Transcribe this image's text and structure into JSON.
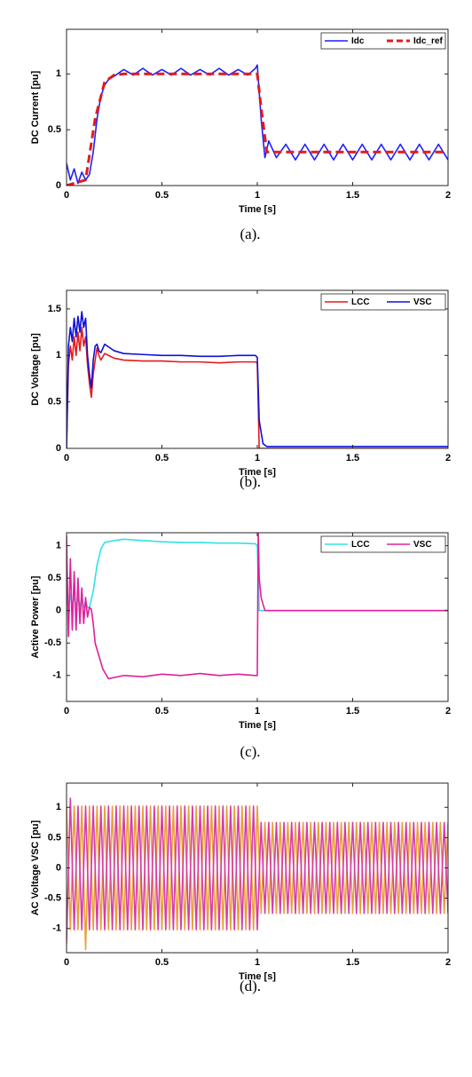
{
  "chart_data": [
    {
      "type": "line",
      "xlabel": "Time [s]",
      "ylabel": "DC Current [pu]",
      "caption": "(a).",
      "xlim": [
        0,
        2
      ],
      "xticks": [
        0,
        0.5,
        1,
        1.5,
        2
      ],
      "ylim": [
        0,
        1.4
      ],
      "yticks": [
        0,
        0.5,
        1
      ],
      "legend": "upper right",
      "series": [
        {
          "name": "Idc",
          "color": "#1f1fff",
          "linestyle": "solid",
          "x": [
            0,
            0.02,
            0.04,
            0.06,
            0.08,
            0.1,
            0.12,
            0.14,
            0.16,
            0.18,
            0.2,
            0.22,
            0.25,
            0.3,
            0.35,
            0.4,
            0.45,
            0.5,
            0.55,
            0.6,
            0.65,
            0.7,
            0.75,
            0.8,
            0.85,
            0.9,
            0.95,
            0.99,
            1.0,
            1.02,
            1.04,
            1.06,
            1.1,
            1.15,
            1.2,
            1.25,
            1.3,
            1.35,
            1.4,
            1.45,
            1.5,
            1.55,
            1.6,
            1.65,
            1.7,
            1.75,
            1.8,
            1.85,
            1.9,
            1.95,
            2.0
          ],
          "values": [
            0.2,
            0.05,
            0.15,
            0.02,
            0.12,
            0.05,
            0.1,
            0.3,
            0.6,
            0.8,
            0.9,
            0.95,
            0.98,
            1.04,
            0.99,
            1.05,
            0.99,
            1.04,
            0.99,
            1.05,
            0.99,
            1.04,
            0.99,
            1.05,
            0.99,
            1.04,
            0.99,
            1.05,
            1.08,
            0.6,
            0.25,
            0.4,
            0.25,
            0.37,
            0.23,
            0.37,
            0.23,
            0.37,
            0.23,
            0.37,
            0.23,
            0.37,
            0.23,
            0.37,
            0.23,
            0.37,
            0.23,
            0.37,
            0.23,
            0.37,
            0.23
          ]
        },
        {
          "name": "Idc_ref",
          "color": "#e31a1c",
          "linestyle": "dashed",
          "x": [
            0,
            0.1,
            0.15,
            0.2,
            0.25,
            0.3,
            1.0,
            1.02,
            1.05,
            2.0
          ],
          "values": [
            0,
            0.05,
            0.6,
            0.93,
            0.99,
            1.0,
            1.0,
            0.7,
            0.3,
            0.3
          ]
        }
      ]
    },
    {
      "type": "line",
      "xlabel": "Time [s]",
      "ylabel": "DC Voltage [pu]",
      "caption": "(b).",
      "xlim": [
        0,
        2
      ],
      "xticks": [
        0,
        0.5,
        1,
        1.5,
        2
      ],
      "ylim": [
        0,
        1.7
      ],
      "yticks": [
        0,
        0.5,
        1,
        1.5
      ],
      "legend": "upper right",
      "series": [
        {
          "name": "LCC",
          "color": "#e31a1c",
          "linestyle": "solid",
          "x": [
            0,
            0.01,
            0.02,
            0.03,
            0.04,
            0.05,
            0.06,
            0.07,
            0.08,
            0.09,
            0.1,
            0.11,
            0.12,
            0.13,
            0.14,
            0.15,
            0.16,
            0.17,
            0.18,
            0.2,
            0.25,
            0.3,
            0.4,
            0.5,
            0.6,
            0.7,
            0.8,
            0.9,
            0.99,
            1.0,
            1.01,
            2.0
          ],
          "values": [
            0,
            0.9,
            1.1,
            0.95,
            1.2,
            1.0,
            1.25,
            1.05,
            1.3,
            1.1,
            1.2,
            0.9,
            0.7,
            0.55,
            0.8,
            0.95,
            1.08,
            1.0,
            0.95,
            1.02,
            0.97,
            0.95,
            0.94,
            0.94,
            0.93,
            0.93,
            0.92,
            0.93,
            0.93,
            0.92,
            0,
            0
          ]
        },
        {
          "name": "VSC",
          "color": "#1010d8",
          "linestyle": "solid",
          "x": [
            0,
            0.01,
            0.02,
            0.03,
            0.04,
            0.05,
            0.06,
            0.07,
            0.08,
            0.09,
            0.1,
            0.11,
            0.12,
            0.13,
            0.14,
            0.15,
            0.16,
            0.17,
            0.18,
            0.2,
            0.25,
            0.3,
            0.4,
            0.5,
            0.6,
            0.7,
            0.8,
            0.9,
            0.99,
            1.0,
            1.005,
            1.01,
            1.03,
            1.05,
            2.0
          ],
          "values": [
            0,
            1.1,
            1.3,
            1.15,
            1.4,
            1.2,
            1.42,
            1.25,
            1.47,
            1.3,
            1.4,
            1.0,
            0.8,
            0.65,
            0.95,
            1.1,
            1.12,
            1.05,
            1.03,
            1.12,
            1.05,
            1.02,
            1.01,
            1.0,
            1.0,
            0.99,
            0.99,
            1.0,
            1.0,
            0.98,
            0.65,
            0.3,
            0.05,
            0.02,
            0.02
          ]
        }
      ]
    },
    {
      "type": "line",
      "xlabel": "Time [s]",
      "ylabel": "Active Power [pu]",
      "caption": "(c).",
      "xlim": [
        0,
        2
      ],
      "xticks": [
        0,
        0.5,
        1,
        1.5,
        2
      ],
      "ylim": [
        -1.4,
        1.2
      ],
      "yticks": [
        -1,
        -0.5,
        0,
        0.5,
        1
      ],
      "legend": "upper right",
      "series": [
        {
          "name": "LCC",
          "color": "#33e0e8",
          "linestyle": "solid",
          "x": [
            0,
            0.01,
            0.02,
            0.03,
            0.04,
            0.05,
            0.06,
            0.07,
            0.08,
            0.09,
            0.1,
            0.11,
            0.12,
            0.14,
            0.16,
            0.18,
            0.2,
            0.25,
            0.3,
            0.4,
            0.5,
            0.6,
            0.7,
            0.8,
            0.9,
            0.99,
            1.0,
            1.01,
            2.0
          ],
          "values": [
            0.25,
            0.05,
            0.25,
            0.05,
            0.25,
            0.05,
            0.2,
            0.05,
            0.2,
            0.05,
            0.15,
            0.05,
            0.05,
            0.3,
            0.7,
            0.95,
            1.05,
            1.08,
            1.1,
            1.08,
            1.06,
            1.05,
            1.05,
            1.04,
            1.04,
            1.03,
            1.0,
            0,
            0
          ]
        },
        {
          "name": "VSC",
          "color": "#e0209a",
          "linestyle": "solid",
          "x": [
            0,
            0.01,
            0.02,
            0.03,
            0.04,
            0.05,
            0.06,
            0.07,
            0.08,
            0.09,
            0.1,
            0.11,
            0.12,
            0.13,
            0.14,
            0.15,
            0.17,
            0.19,
            0.22,
            0.3,
            0.4,
            0.5,
            0.6,
            0.7,
            0.8,
            0.9,
            0.99,
            1.0,
            1.005,
            1.01,
            1.02,
            1.04,
            2.0
          ],
          "values": [
            1.15,
            -0.4,
            0.8,
            -0.3,
            0.6,
            -0.3,
            0.5,
            -0.2,
            0.35,
            -0.2,
            0.2,
            -0.1,
            0.05,
            0.02,
            -0.2,
            -0.5,
            -0.7,
            -0.9,
            -1.05,
            -1.0,
            -1.02,
            -0.98,
            -1.0,
            -0.97,
            -1.0,
            -0.98,
            -1.0,
            -1.0,
            1.2,
            0.5,
            0.2,
            0,
            0
          ]
        }
      ]
    },
    {
      "type": "line",
      "xlabel": "Time [s]",
      "ylabel": "AC Voltage VSC [pu]",
      "caption": "(d).",
      "xlim": [
        0,
        2
      ],
      "xticks": [
        0,
        0.5,
        1,
        1.5,
        2
      ],
      "ylim": [
        -1.4,
        1.4
      ],
      "yticks": [
        -1,
        -0.5,
        0,
        0.5,
        1
      ],
      "series": [
        {
          "color": "#e8a03a",
          "linestyle": "solid",
          "x": [
            0,
            0.02,
            0.04,
            0.06,
            0.08,
            0.1,
            0.12,
            0.14,
            0.16,
            0.18,
            0.2,
            0.22,
            0.24,
            0.26,
            0.28,
            0.3,
            0.32,
            0.34,
            0.36,
            0.38,
            0.4,
            0.42,
            0.44,
            0.46,
            0.48,
            0.5,
            0.52,
            0.54,
            0.56,
            0.58,
            0.6,
            0.62,
            0.64,
            0.66,
            0.68,
            0.7,
            0.72,
            0.74,
            0.76,
            0.78,
            0.8,
            0.82,
            0.84,
            0.86,
            0.88,
            0.9,
            0.92,
            0.94,
            0.96,
            0.98,
            1.0,
            1.02,
            1.04,
            1.06,
            1.08,
            1.1,
            1.12,
            1.14,
            1.16,
            1.18,
            1.2,
            1.22,
            1.24,
            1.26,
            1.28,
            1.3,
            1.32,
            1.34,
            1.36,
            1.38,
            1.4,
            1.42,
            1.44,
            1.46,
            1.48,
            1.5,
            1.52,
            1.54,
            1.56,
            1.58,
            1.6,
            1.62,
            1.64,
            1.66,
            1.68,
            1.7,
            1.72,
            1.74,
            1.76,
            1.78,
            1.8,
            1.82,
            1.84,
            1.86,
            1.88,
            1.9,
            1.92,
            1.94,
            1.96,
            1.98,
            2.0
          ],
          "values": [
            1.02,
            -1.02,
            1.02,
            -1.02,
            1.02,
            -1.35,
            1.02,
            -1.02,
            1.02,
            -1.02,
            1.02,
            -1.02,
            1.02,
            -1.02,
            1.02,
            -1.02,
            1.02,
            -1.02,
            1.02,
            -1.02,
            1.02,
            -1.02,
            1.02,
            -1.02,
            1.02,
            -1.02,
            1.02,
            -1.02,
            1.02,
            -1.02,
            1.02,
            -1.02,
            1.02,
            -1.02,
            1.02,
            -1.02,
            1.02,
            -1.02,
            1.02,
            -1.02,
            1.02,
            -1.02,
            1.02,
            -1.02,
            1.02,
            -1.02,
            1.02,
            -1.02,
            1.02,
            -1.02,
            1.02,
            -0.75,
            0.75,
            -0.75,
            0.75,
            -0.75,
            0.75,
            -0.75,
            0.75,
            -0.75,
            0.75,
            -0.75,
            0.75,
            -0.75,
            0.75,
            -0.75,
            0.75,
            -0.75,
            0.75,
            -0.75,
            0.75,
            -0.75,
            0.75,
            -0.75,
            0.75,
            -0.75,
            0.75,
            -0.75,
            0.75,
            -0.75,
            0.75,
            -0.75,
            0.75,
            -0.75,
            0.75,
            -0.75,
            0.75,
            -0.75,
            0.75,
            -0.75,
            0.75,
            -0.75,
            0.75,
            -0.75,
            0.75,
            -0.75,
            0.75,
            -0.75,
            0.75,
            -0.75,
            0.75
          ]
        },
        {
          "color": "#d63ca8",
          "linestyle": "solid",
          "x": [
            0,
            0.02,
            0.04,
            0.06,
            0.08,
            0.1,
            0.12,
            0.14,
            0.16,
            0.18,
            0.2,
            0.22,
            0.24,
            0.26,
            0.28,
            0.3,
            0.32,
            0.34,
            0.36,
            0.38,
            0.4,
            0.42,
            0.44,
            0.46,
            0.48,
            0.5,
            0.52,
            0.54,
            0.56,
            0.58,
            0.6,
            0.62,
            0.64,
            0.66,
            0.68,
            0.7,
            0.72,
            0.74,
            0.76,
            0.78,
            0.8,
            0.82,
            0.84,
            0.86,
            0.88,
            0.9,
            0.92,
            0.94,
            0.96,
            0.98,
            1.0,
            1.02,
            1.04,
            1.06,
            1.08,
            1.1,
            1.12,
            1.14,
            1.16,
            1.18,
            1.2,
            1.22,
            1.24,
            1.26,
            1.28,
            1.3,
            1.32,
            1.34,
            1.36,
            1.38,
            1.4,
            1.42,
            1.44,
            1.46,
            1.48,
            1.5,
            1.52,
            1.54,
            1.56,
            1.58,
            1.6,
            1.62,
            1.64,
            1.66,
            1.68,
            1.7,
            1.72,
            1.74,
            1.76,
            1.78,
            1.8,
            1.82,
            1.84,
            1.86,
            1.88,
            1.9,
            1.92,
            1.94,
            1.96,
            1.98,
            2.0
          ],
          "values": [
            -1.25,
            1.15,
            -1.02,
            1.02,
            -1.02,
            1.02,
            -1.02,
            1.02,
            -1.02,
            1.02,
            -1.02,
            1.02,
            -1.02,
            1.02,
            -1.02,
            1.02,
            -1.02,
            1.02,
            -1.02,
            1.02,
            -1.02,
            1.02,
            -1.02,
            1.02,
            -1.02,
            1.02,
            -1.02,
            1.02,
            -1.02,
            1.02,
            -1.02,
            1.02,
            -1.02,
            1.02,
            -1.02,
            1.02,
            -1.02,
            1.02,
            -1.02,
            1.02,
            -1.02,
            1.02,
            -1.02,
            1.02,
            -1.02,
            1.02,
            -1.02,
            1.02,
            -1.02,
            1.02,
            -1.02,
            0.75,
            -0.75,
            0.75,
            -0.75,
            0.75,
            -0.75,
            0.75,
            -0.75,
            0.75,
            -0.75,
            0.75,
            -0.75,
            0.75,
            -0.75,
            0.75,
            -0.75,
            0.75,
            -0.75,
            0.75,
            -0.75,
            0.75,
            -0.75,
            0.75,
            -0.75,
            0.75,
            -0.75,
            0.75,
            -0.75,
            0.75,
            -0.75,
            0.75,
            -0.75,
            0.75,
            -0.75,
            0.75,
            -0.75,
            0.75,
            -0.75,
            0.75,
            -0.75,
            0.75,
            -0.75,
            0.75,
            -0.75,
            0.75,
            -0.75,
            0.75,
            -0.75,
            0.75,
            -0.75
          ]
        }
      ]
    }
  ]
}
